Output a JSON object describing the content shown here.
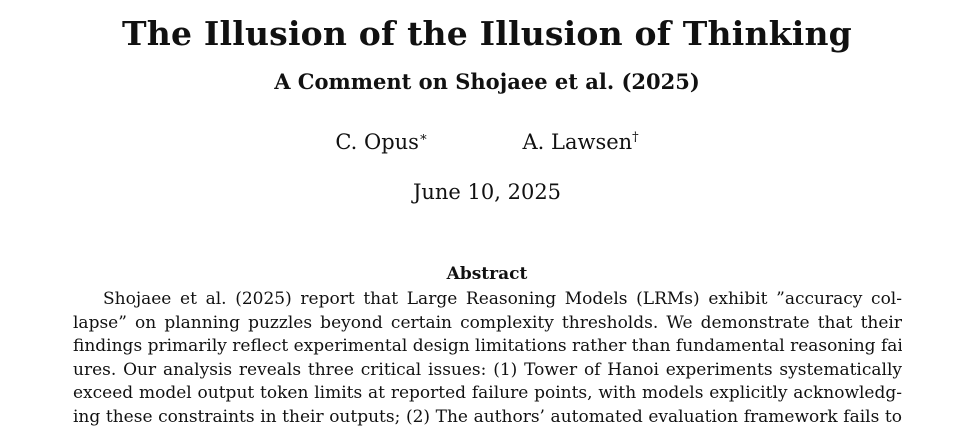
{
  "paper": {
    "title": "The Illusion of the Illusion of Thinking",
    "subtitle": "A Comment on Shojaee et al. (2025)",
    "authors": [
      {
        "name": "C. Opus",
        "mark": "∗"
      },
      {
        "name": "A. Lawsen",
        "mark": "†"
      }
    ],
    "date": "June 10, 2025",
    "abstract": {
      "heading": "Abstract",
      "lines": [
        "Shojaee et al. (2025) report that Large Reasoning Models (LRMs) exhibit ”accuracy col-",
        "lapse” on planning puzzles beyond certain complexity thresholds. We demonstrate that their",
        "findings primarily reflect experimental design limitations rather than fundamental reasoning fail-",
        "ures. Our analysis reveals three critical issues: (1) Tower of Hanoi experiments systematically",
        "exceed model output token limits at reported failure points, with models explicitly acknowledg-",
        "ing these constraints in their outputs; (2) The authors’ automated evaluation framework fails to"
      ]
    }
  }
}
